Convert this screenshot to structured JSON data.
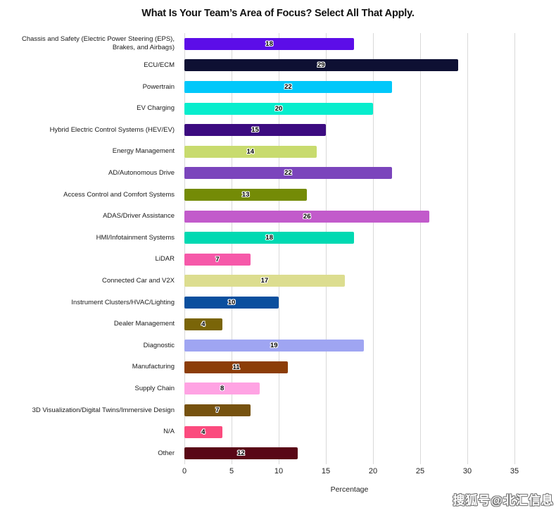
{
  "watermark": "搜狐号@北汇信息",
  "chart_data": {
    "type": "bar",
    "orientation": "horizontal",
    "title": "What Is Your Team’s Area of Focus? Select All That Apply.",
    "xlabel": "Percentage",
    "xlim": [
      0,
      35
    ],
    "xticks": [
      0,
      5,
      10,
      15,
      20,
      25,
      30,
      35
    ],
    "grid": "vertical",
    "legend": "none",
    "value_label_style": "black text with white halo, centered inside bar",
    "categories": [
      "Chassis and Safety (Electric Power Steering (EPS), Brakes, and Airbags)",
      "ECU/ECM",
      "Powertrain",
      "EV Charging",
      "Hybrid Electric Control Systems (HEV/EV)",
      "Energy Management",
      "AD/Autonomous Drive",
      "Access Control and Comfort Systems",
      "ADAS/Driver Assistance",
      "HMI/Infotainment Systems",
      "LiDAR",
      "Connected Car and V2X",
      "Instrument Clusters/HVAC/Lighting",
      "Dealer Management",
      "Diagnostic",
      "Manufacturing",
      "Supply Chain",
      "3D Visualization/Digital Twins/Immersive Design",
      "N/A",
      "Other"
    ],
    "values": [
      18,
      29,
      22,
      20,
      15,
      14,
      22,
      13,
      26,
      18,
      7,
      17,
      10,
      4,
      19,
      11,
      8,
      7,
      4,
      12
    ],
    "bar_colors": [
      "#5C0DE8",
      "#0E1033",
      "#00C8FA",
      "#07EDCD",
      "#3C0B80",
      "#C8DB6E",
      "#7B45BC",
      "#748B06",
      "#C25BCB",
      "#00D9B2",
      "#F659A9",
      "#DCDD8F",
      "#0A4F9E",
      "#7A6508",
      "#9FA5F2",
      "#8C3D08",
      "#FFA3E3",
      "#76520F",
      "#FB4B7E",
      "#590716"
    ],
    "gridline_color": "#d9d9d9"
  }
}
